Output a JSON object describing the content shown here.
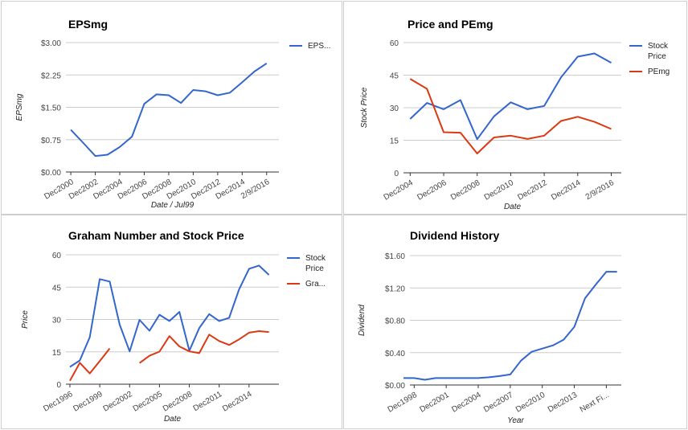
{
  "chart_data": [
    {
      "type": "line",
      "title": "EPSmg",
      "xlabel": "Date / Jul99",
      "ylabel": "EPSmg",
      "ytick_labels": [
        "$0.00",
        "$0.75",
        "$1.50",
        "$2.25",
        "$3.00"
      ],
      "ylim": [
        0,
        3
      ],
      "x_tick_labels": [
        "Dec2000",
        "Dec2002",
        "Dec2004",
        "Dec2006",
        "Dec2008",
        "Dec2010",
        "Dec2012",
        "Dec2014",
        "2/9/2016"
      ],
      "x_tick_pos": [
        1,
        3,
        5,
        7,
        9,
        11,
        13,
        15,
        17
      ],
      "xlim": [
        0.6,
        18
      ],
      "legend_position": "right",
      "series": [
        {
          "name": "EPS...",
          "color": "#3366cc",
          "points": [
            [
              1,
              0.98
            ],
            [
              2,
              0.68
            ],
            [
              3,
              0.37
            ],
            [
              4,
              0.4
            ],
            [
              5,
              0.58
            ],
            [
              6,
              0.82
            ],
            [
              7,
              1.58
            ],
            [
              8,
              1.8
            ],
            [
              9,
              1.78
            ],
            [
              10,
              1.6
            ],
            [
              11,
              1.9
            ],
            [
              12,
              1.87
            ],
            [
              13,
              1.78
            ],
            [
              14,
              1.84
            ],
            [
              15,
              2.08
            ],
            [
              16,
              2.33
            ],
            [
              17,
              2.52
            ]
          ]
        }
      ]
    },
    {
      "type": "line",
      "title": "Price and PEmg",
      "xlabel": "Date",
      "ylabel": "Stock Price",
      "ytick_labels": [
        "0",
        "15",
        "30",
        "45",
        "60"
      ],
      "ylim": [
        0,
        60
      ],
      "x_tick_labels": [
        "Dec2004",
        "Dec2006",
        "Dec2008",
        "Dec2010",
        "Dec2012",
        "Dec2014",
        "2/9/2016"
      ],
      "x_tick_pos": [
        1,
        3,
        5,
        7,
        9,
        11,
        13
      ],
      "xlim": [
        0.6,
        13.6
      ],
      "legend_position": "right",
      "series": [
        {
          "name": "Stock Price",
          "color": "#3366cc",
          "points": [
            [
              1,
              24.8
            ],
            [
              2,
              32.2
            ],
            [
              3,
              29.3
            ],
            [
              4,
              33.5
            ],
            [
              5,
              15.5
            ],
            [
              6,
              26
            ],
            [
              7,
              32.5
            ],
            [
              8,
              29.3
            ],
            [
              9,
              30.8
            ],
            [
              10,
              44
            ],
            [
              11,
              53.5
            ],
            [
              12,
              55
            ],
            [
              13,
              50.7
            ]
          ]
        },
        {
          "name": "PEmg",
          "color": "#dc3912",
          "points": [
            [
              1,
              43.3
            ],
            [
              2,
              38.7
            ],
            [
              3,
              18.7
            ],
            [
              4,
              18.5
            ],
            [
              5,
              8.9
            ],
            [
              6,
              16.3
            ],
            [
              7,
              17.1
            ],
            [
              8,
              15.6
            ],
            [
              9,
              17.1
            ],
            [
              10,
              23.9
            ],
            [
              11,
              25.8
            ],
            [
              12,
              23.5
            ],
            [
              13,
              20.2
            ]
          ]
        }
      ]
    },
    {
      "type": "line",
      "title": "Graham Number and Stock Price",
      "xlabel": "Date",
      "ylabel": "Price",
      "ytick_labels": [
        "0",
        "15",
        "30",
        "45",
        "60"
      ],
      "ylim": [
        0,
        60
      ],
      "x_tick_labels": [
        "Dec1996",
        "Dec1999",
        "Dec2002",
        "Dec2005",
        "Dec2008",
        "Dec2011",
        "Dec2014"
      ],
      "x_tick_pos": [
        1996,
        1999,
        2002,
        2005,
        2008,
        2011,
        2014
      ],
      "xlim": [
        1995.6,
        2017
      ],
      "legend_position": "right",
      "series": [
        {
          "name": "Stock Price",
          "color": "#3366cc",
          "points": [
            [
              1996,
              8
            ],
            [
              1997,
              11
            ],
            [
              1998,
              21.8
            ],
            [
              1999,
              48.7
            ],
            [
              2000,
              47.6
            ],
            [
              2001,
              27.6
            ],
            [
              2002,
              15.2
            ],
            [
              2003,
              29.8
            ],
            [
              2004,
              24.8
            ],
            [
              2005,
              32.2
            ],
            [
              2006,
              29.3
            ],
            [
              2007,
              33.5
            ],
            [
              2008,
              15.5
            ],
            [
              2009,
              26
            ],
            [
              2010,
              32.5
            ],
            [
              2011,
              29.3
            ],
            [
              2012,
              30.8
            ],
            [
              2013,
              44
            ],
            [
              2014,
              53.5
            ],
            [
              2015,
              55
            ],
            [
              2016,
              50.7
            ]
          ]
        },
        {
          "name": "Gra...",
          "color": "#dc3912",
          "segments": [
            [
              [
                1996,
                1.6
              ],
              [
                1997,
                9.9
              ],
              [
                1998,
                5
              ],
              [
                1999,
                10.7
              ],
              [
                2000,
                16.6
              ]
            ],
            [
              [
                2003,
                9.8
              ],
              [
                2004,
                13.2
              ],
              [
                2005,
                15.1
              ],
              [
                2006,
                22.3
              ],
              [
                2007,
                17.5
              ],
              [
                2008,
                15.2
              ],
              [
                2009,
                14.4
              ],
              [
                2010,
                23
              ],
              [
                2011,
                20
              ],
              [
                2012,
                18.2
              ],
              [
                2013,
                20.8
              ],
              [
                2014,
                23.9
              ],
              [
                2015,
                24.6
              ],
              [
                2016,
                24.2
              ]
            ]
          ]
        }
      ]
    },
    {
      "type": "line",
      "title": "Dividend History",
      "xlabel": "Year",
      "ylabel": "Dividend",
      "ytick_labels": [
        "$0.00",
        "$0.40",
        "$0.80",
        "$1.20",
        "$1.60"
      ],
      "ylim": [
        0,
        1.6
      ],
      "x_tick_labels": [
        "Dec1998",
        "Dec2001",
        "Dec2004",
        "Dec2007",
        "Dec2010",
        "Dec2013",
        "Next Fi..."
      ],
      "x_tick_pos": [
        1,
        4,
        7,
        10,
        13,
        16,
        19
      ],
      "xlim": [
        0.6,
        20.4
      ],
      "legend_position": "none",
      "series": [
        {
          "name": "Dividend",
          "color": "#3366cc",
          "points": [
            [
              0,
              0.085
            ],
            [
              1,
              0.085
            ],
            [
              2,
              0.065
            ],
            [
              3,
              0.085
            ],
            [
              4,
              0.085
            ],
            [
              5,
              0.085
            ],
            [
              6,
              0.085
            ],
            [
              7,
              0.085
            ],
            [
              8,
              0.095
            ],
            [
              9,
              0.11
            ],
            [
              10,
              0.13
            ],
            [
              11,
              0.3
            ],
            [
              12,
              0.41
            ],
            [
              13,
              0.45
            ],
            [
              14,
              0.49
            ],
            [
              15,
              0.56
            ],
            [
              16,
              0.72
            ],
            [
              17,
              1.07
            ],
            [
              18,
              1.24
            ],
            [
              19,
              1.4
            ],
            [
              20,
              1.4
            ]
          ]
        }
      ]
    }
  ]
}
